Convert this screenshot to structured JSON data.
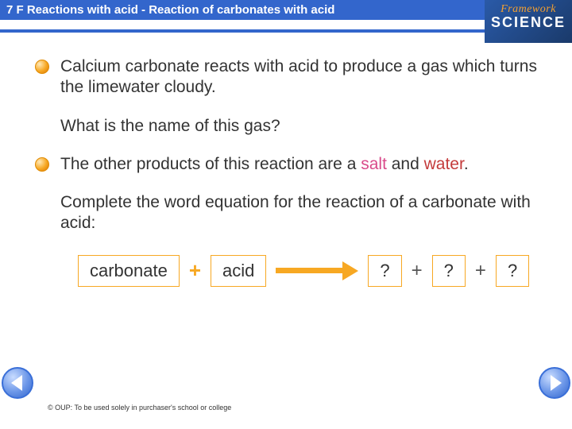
{
  "header": {
    "title": "7 F  Reactions with acid - Reaction of carbonates with acid"
  },
  "logo": {
    "line1": "Framework",
    "line2": "SCIENCE"
  },
  "content": {
    "p1": "Calcium carbonate reacts with acid to produce a gas which turns the limewater cloudy.",
    "p2": "What is the name of this gas?",
    "p3_pre": "The other products of this reaction are a ",
    "p3_salt": "salt",
    "p3_and": " and ",
    "p3_water": "water",
    "p3_post": ".",
    "p4": "Complete the word equation for the reaction of a carbonate with acid:"
  },
  "equation": {
    "reactant1": "carbonate",
    "plus": "+",
    "reactant2": "acid",
    "product1": "?",
    "product2": "?",
    "product3": "?"
  },
  "footer": {
    "text": "© OUP: To be used solely in purchaser's school or college"
  },
  "colors": {
    "header_bg": "#3366cc",
    "accent": "#f7a823",
    "salt": "#d94a8a",
    "water": "#c43b3b"
  }
}
